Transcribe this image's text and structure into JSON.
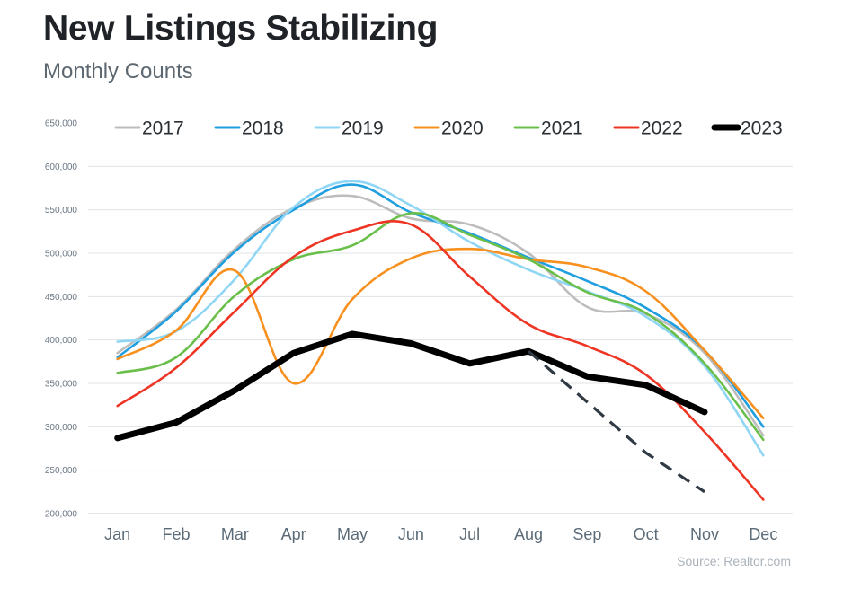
{
  "header": {
    "title": "New Listings Stabilizing",
    "subtitle": "Monthly Counts"
  },
  "footer": {
    "source": "Source: Realtor.com"
  },
  "chart_data": {
    "type": "line",
    "categories": [
      "Jan",
      "Feb",
      "Mar",
      "Apr",
      "May",
      "Jun",
      "Jul",
      "Aug",
      "Sep",
      "Oct",
      "Nov",
      "Dec"
    ],
    "ylim": [
      200000,
      650000
    ],
    "yticks": [
      {
        "value": 200000,
        "label": "200,000"
      },
      {
        "value": 250000,
        "label": "250,000"
      },
      {
        "value": 300000,
        "label": "300,000"
      },
      {
        "value": 350000,
        "label": "350,000"
      },
      {
        "value": 400000,
        "label": "400,000"
      },
      {
        "value": 450000,
        "label": "450,000"
      },
      {
        "value": 500000,
        "label": "500,000"
      },
      {
        "value": 550000,
        "label": "550,000"
      },
      {
        "value": 600000,
        "label": "600,000"
      },
      {
        "value": 650000,
        "label": "650,000"
      }
    ],
    "grid": true,
    "legend_position": "top",
    "series": [
      {
        "name": "2017",
        "color": "#bdbdbd",
        "values": [
          385000,
          435000,
          505000,
          552000,
          566000,
          540000,
          533000,
          500000,
          438000,
          430000,
          385000,
          290000
        ]
      },
      {
        "name": "2018",
        "color": "#1f9ee0",
        "values": [
          380000,
          433000,
          502000,
          550000,
          579000,
          547000,
          523000,
          495000,
          468000,
          437000,
          388000,
          300000
        ]
      },
      {
        "name": "2019",
        "color": "#8fd6f5",
        "values": [
          398000,
          410000,
          470000,
          553000,
          583000,
          555000,
          513000,
          481000,
          456000,
          427000,
          370000,
          267000
        ]
      },
      {
        "name": "2020",
        "color": "#f7901e",
        "values": [
          378000,
          411000,
          480000,
          350000,
          447000,
          494000,
          505000,
          493000,
          484000,
          456000,
          388000,
          310000
        ]
      },
      {
        "name": "2021",
        "color": "#6abf4b",
        "values": [
          362000,
          380000,
          451000,
          493000,
          509000,
          546000,
          521000,
          493000,
          455000,
          431000,
          373000,
          285000
        ]
      },
      {
        "name": "2022",
        "color": "#ee3524",
        "values": [
          324000,
          368000,
          433000,
          496000,
          526000,
          533000,
          473000,
          418000,
          393000,
          360000,
          294000,
          216000
        ]
      },
      {
        "name": "2023",
        "color": "#000000",
        "values": [
          287000,
          305000,
          342000,
          385000,
          407000,
          396000,
          373000,
          387000,
          358000,
          348000,
          317000,
          null
        ]
      }
    ],
    "projection": {
      "color": "#2f3a45",
      "points": [
        {
          "x": "Aug",
          "y": 387000
        },
        {
          "x": "Oct",
          "y": 270000
        },
        {
          "x": "Nov",
          "y": 225000
        }
      ]
    }
  }
}
